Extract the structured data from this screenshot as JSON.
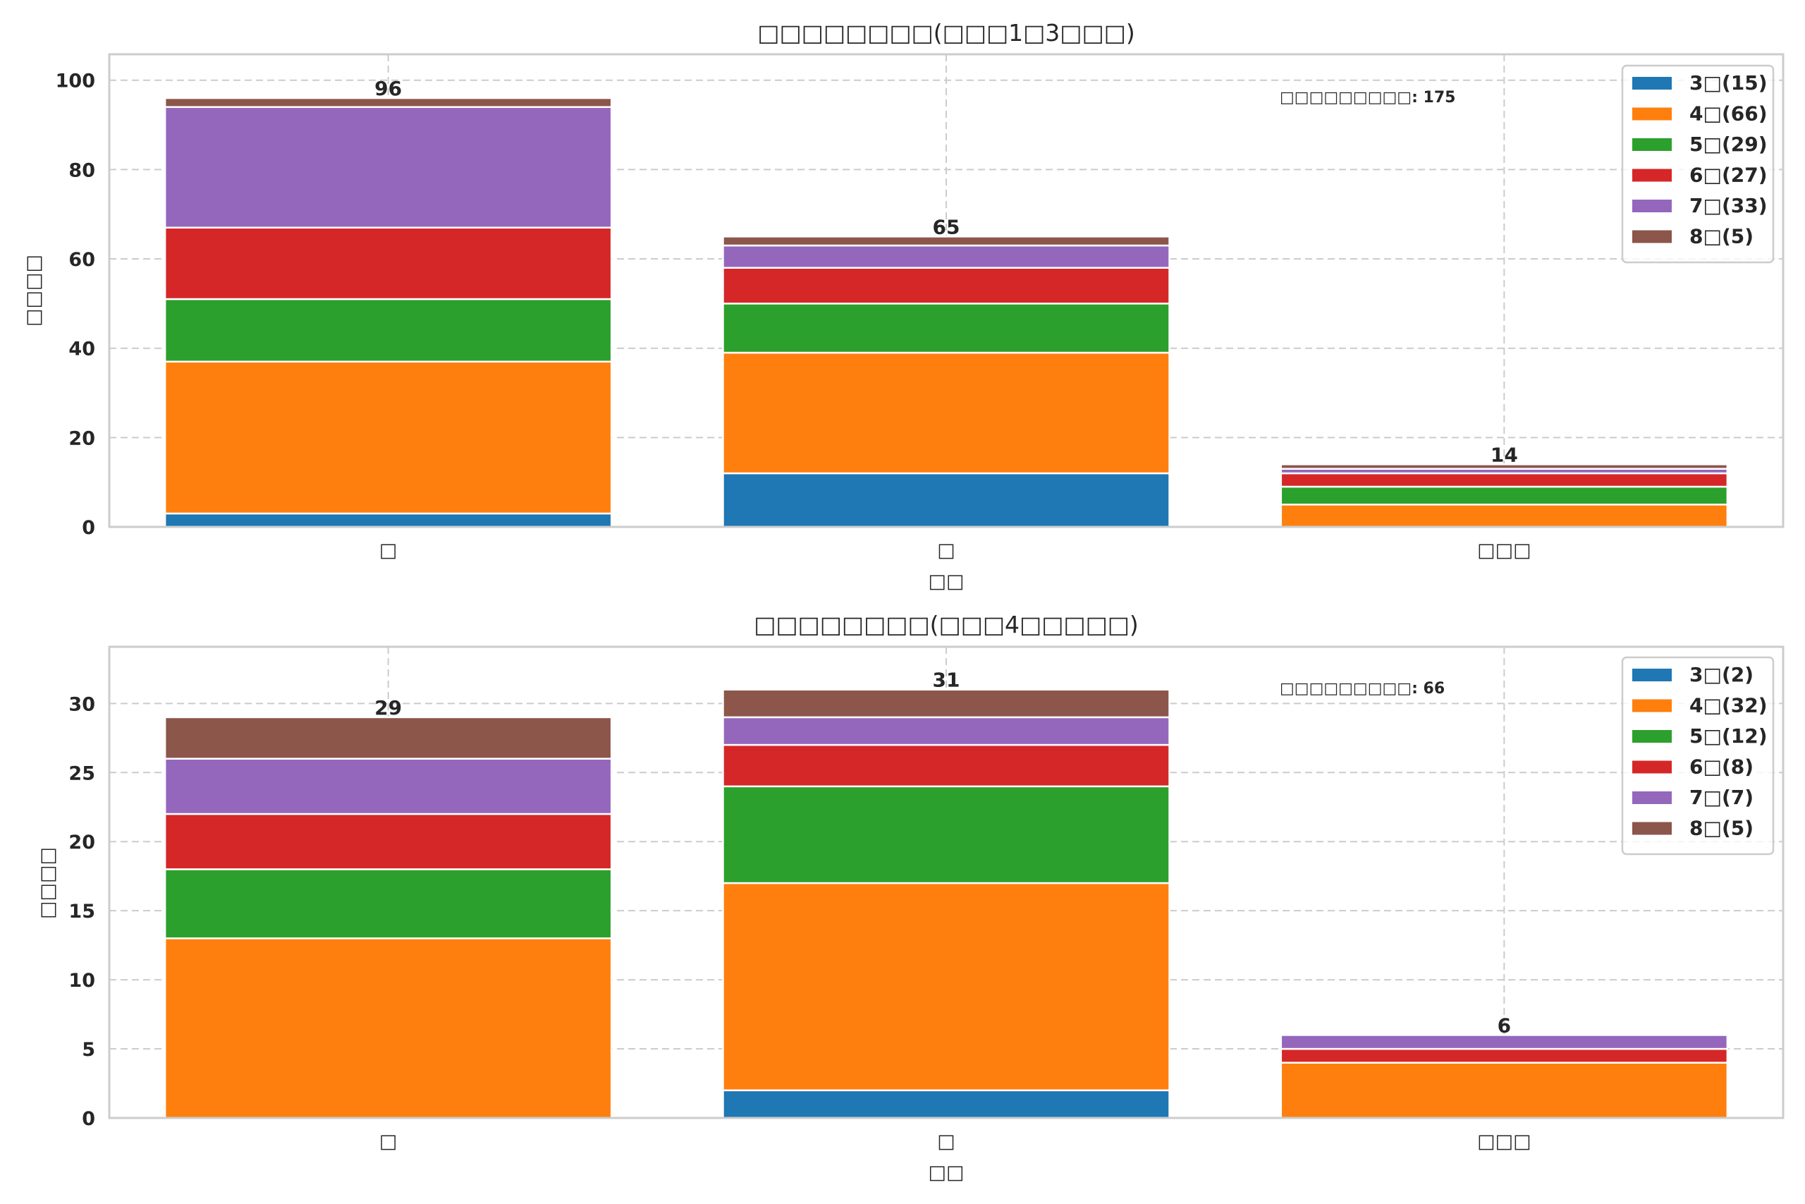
{
  "chart_data": [
    {
      "type": "bar",
      "stacked": true,
      "title": "□□□□□□□□(□□□1□3□□□)",
      "xlabel": "□□",
      "ylabel": "□□□□",
      "categories": [
        "□",
        "□",
        "□□□"
      ],
      "ylim": [
        0,
        105.8
      ],
      "yticks": [
        0,
        20,
        40,
        60,
        80,
        100
      ],
      "grid": true,
      "legend_position": "top-right",
      "annotation": "□□□□□□□□□: 175",
      "totals": [
        96,
        65,
        14
      ],
      "series": [
        {
          "name": "3□(15)",
          "color": "#1f77b4",
          "values": [
            3,
            12,
            0
          ]
        },
        {
          "name": "4□(66)",
          "color": "#ff7f0e",
          "values": [
            34,
            27,
            5
          ]
        },
        {
          "name": "5□(29)",
          "color": "#2ca02c",
          "values": [
            14,
            11,
            4
          ]
        },
        {
          "name": "6□(27)",
          "color": "#d62728",
          "values": [
            16,
            8,
            3
          ]
        },
        {
          "name": "7□(33)",
          "color": "#9467bd",
          "values": [
            27,
            5,
            1
          ]
        },
        {
          "name": "8□(5)",
          "color": "#8c564b",
          "values": [
            2,
            2,
            1
          ]
        }
      ]
    },
    {
      "type": "bar",
      "stacked": true,
      "title": "□□□□□□□□(□□□4□□□□□)",
      "xlabel": "□□",
      "ylabel": "□□□□",
      "categories": [
        "□",
        "□",
        "□□□"
      ],
      "ylim": [
        0,
        34.1
      ],
      "yticks": [
        0,
        5,
        10,
        15,
        20,
        25,
        30
      ],
      "grid": true,
      "legend_position": "top-right",
      "annotation": "□□□□□□□□□: 66",
      "totals": [
        29,
        31,
        6
      ],
      "series": [
        {
          "name": "3□(2)",
          "color": "#1f77b4",
          "values": [
            0,
            2,
            0
          ]
        },
        {
          "name": "4□(32)",
          "color": "#ff7f0e",
          "values": [
            13,
            15,
            4
          ]
        },
        {
          "name": "5□(12)",
          "color": "#2ca02c",
          "values": [
            5,
            7,
            0
          ]
        },
        {
          "name": "6□(8)",
          "color": "#d62728",
          "values": [
            4,
            3,
            1
          ]
        },
        {
          "name": "7□(7)",
          "color": "#9467bd",
          "values": [
            4,
            2,
            1
          ]
        },
        {
          "name": "8□(5)",
          "color": "#8c564b",
          "values": [
            3,
            2,
            0
          ]
        }
      ]
    }
  ]
}
